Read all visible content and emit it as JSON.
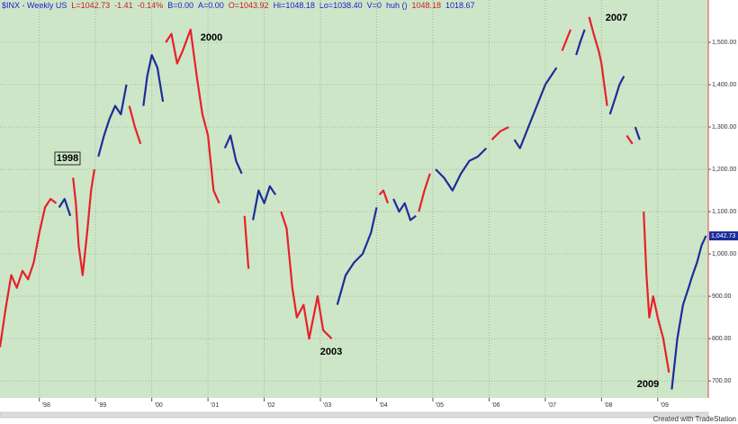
{
  "chart_data": {
    "type": "line",
    "header": [
      {
        "text": "$INX - Weekly  US",
        "color": "#1a1ad0"
      },
      {
        "text": "L=1042.73",
        "color": "#d01a1a"
      },
      {
        "text": "-1.41",
        "color": "#d01a1a"
      },
      {
        "text": "-0.14%",
        "color": "#d01a1a"
      },
      {
        "text": "B=0.00",
        "color": "#1a1ad0"
      },
      {
        "text": "A=0.00",
        "color": "#1a1ad0"
      },
      {
        "text": "O=1043.92",
        "color": "#d01a1a"
      },
      {
        "text": "Hi=1048.18",
        "color": "#1a1ad0"
      },
      {
        "text": "Lo=1038.40",
        "color": "#1a1ad0"
      },
      {
        "text": "V=0",
        "color": "#1a1ad0"
      },
      {
        "text": "huh ()",
        "color": "#1a1ad0"
      },
      {
        "text": "1048.18",
        "color": "#d01a1a"
      },
      {
        "text": "1018.67",
        "color": "#1a1ad0"
      }
    ],
    "annotations": [
      "1998",
      "2000",
      "2003",
      "2007",
      "2009"
    ],
    "footer": "Created with TradeStation",
    "last_price": {
      "value": 1042.73,
      "label": "1,042.73"
    },
    "xlim": [
      1997.3,
      2009.9
    ],
    "xticks": [
      {
        "value": 1998,
        "label": "'98"
      },
      {
        "value": 1999,
        "label": "'99"
      },
      {
        "value": 2000,
        "label": "'00"
      },
      {
        "value": 2001,
        "label": "'01"
      },
      {
        "value": 2002,
        "label": "'02"
      },
      {
        "value": 2003,
        "label": "'03"
      },
      {
        "value": 2004,
        "label": "'04"
      },
      {
        "value": 2005,
        "label": "'05"
      },
      {
        "value": 2006,
        "label": "'06"
      },
      {
        "value": 2007,
        "label": "'07"
      },
      {
        "value": 2008,
        "label": "'08"
      },
      {
        "value": 2009,
        "label": "'09"
      }
    ],
    "ylim": [
      660,
      1600
    ],
    "yticks": [
      {
        "value": 700,
        "label": "700.00"
      },
      {
        "value": 800,
        "label": "800.00"
      },
      {
        "value": 900,
        "label": "900.00"
      },
      {
        "value": 1000,
        "label": "1,000.00"
      },
      {
        "value": 1100,
        "label": "1,100.00"
      },
      {
        "value": 1200,
        "label": "1,200.00"
      },
      {
        "value": 1300,
        "label": "1,300.00"
      },
      {
        "value": 1400,
        "label": "1,400.00"
      },
      {
        "value": 1500,
        "label": "1,500.00"
      }
    ],
    "grid": true,
    "series": [
      {
        "color": "#e8202a",
        "x": [
          1997.3,
          1997.4,
          1997.5,
          1997.6,
          1997.7,
          1997.8,
          1997.9,
          1998.0,
          1998.1,
          1998.2,
          1998.3
        ],
        "values": [
          780,
          870,
          950,
          920,
          960,
          940,
          980,
          1050,
          1110,
          1130,
          1120
        ]
      },
      {
        "color": "#1c2d9a",
        "x": [
          1998.35,
          1998.45,
          1998.55
        ],
        "values": [
          1110,
          1130,
          1090
        ]
      },
      {
        "color": "#e8202a",
        "x": [
          1998.6,
          1998.65,
          1998.7,
          1998.77,
          1998.85,
          1998.92,
          1998.98
        ],
        "values": [
          1180,
          1120,
          1020,
          950,
          1050,
          1150,
          1200
        ]
      },
      {
        "color": "#1c2d9a",
        "x": [
          1999.05,
          1999.15,
          1999.25,
          1999.35,
          1999.45,
          1999.55
        ],
        "values": [
          1230,
          1280,
          1320,
          1350,
          1330,
          1400
        ]
      },
      {
        "color": "#e8202a",
        "x": [
          1999.6,
          1999.7,
          1999.8
        ],
        "values": [
          1350,
          1300,
          1260
        ]
      },
      {
        "color": "#1c2d9a",
        "x": [
          1999.85,
          1999.92,
          2000.0,
          2000.1,
          2000.2
        ],
        "values": [
          1350,
          1420,
          1470,
          1440,
          1360
        ]
      },
      {
        "color": "#e8202a",
        "x": [
          2000.25,
          2000.35,
          2000.45,
          2000.55,
          2000.69,
          2000.8,
          2000.9,
          2001.0,
          2001.1,
          2001.2
        ],
        "values": [
          1500,
          1520,
          1450,
          1480,
          1530,
          1420,
          1330,
          1280,
          1150,
          1120
        ]
      },
      {
        "color": "#1c2d9a",
        "x": [
          2001.3,
          2001.4,
          2001.5,
          2001.6
        ],
        "values": [
          1250,
          1280,
          1220,
          1190
        ]
      },
      {
        "color": "#e8202a",
        "x": [
          2001.65,
          2001.72
        ],
        "values": [
          1090,
          965
        ]
      },
      {
        "color": "#1c2d9a",
        "x": [
          2001.8,
          2001.9,
          2002.0,
          2002.1,
          2002.2
        ],
        "values": [
          1080,
          1150,
          1120,
          1160,
          1140
        ]
      },
      {
        "color": "#e8202a",
        "x": [
          2002.3,
          2002.4,
          2002.5,
          2002.58,
          2002.7,
          2002.8,
          2002.95,
          2003.05,
          2003.2
        ],
        "values": [
          1100,
          1060,
          920,
          850,
          880,
          800,
          900,
          820,
          800
        ]
      },
      {
        "color": "#1c2d9a",
        "x": [
          2003.3,
          2003.45,
          2003.6,
          2003.75,
          2003.9,
          2004.0
        ],
        "values": [
          880,
          950,
          980,
          1000,
          1050,
          1110
        ]
      },
      {
        "color": "#e8202a",
        "x": [
          2004.05,
          2004.12,
          2004.2
        ],
        "values": [
          1140,
          1150,
          1120
        ]
      },
      {
        "color": "#1c2d9a",
        "x": [
          2004.3,
          2004.4,
          2004.5,
          2004.6,
          2004.7
        ],
        "values": [
          1130,
          1100,
          1120,
          1080,
          1090
        ]
      },
      {
        "color": "#e8202a",
        "x": [
          2004.75,
          2004.85,
          2004.95
        ],
        "values": [
          1100,
          1150,
          1190
        ]
      },
      {
        "color": "#1c2d9a",
        "x": [
          2005.05,
          2005.2,
          2005.35,
          2005.5,
          2005.65,
          2005.8,
          2005.95
        ],
        "values": [
          1200,
          1180,
          1150,
          1190,
          1220,
          1230,
          1250
        ]
      },
      {
        "color": "#e8202a",
        "x": [
          2006.05,
          2006.2,
          2006.35
        ],
        "values": [
          1270,
          1290,
          1300
        ]
      },
      {
        "color": "#1c2d9a",
        "x": [
          2006.45,
          2006.55,
          2006.7,
          2006.85,
          2007.0,
          2007.1,
          2007.2
        ],
        "values": [
          1270,
          1250,
          1300,
          1350,
          1400,
          1420,
          1440
        ]
      },
      {
        "color": "#e8202a",
        "x": [
          2007.3,
          2007.45
        ],
        "values": [
          1480,
          1530
        ]
      },
      {
        "color": "#1c2d9a",
        "x": [
          2007.55,
          2007.62,
          2007.7
        ],
        "values": [
          1470,
          1500,
          1530
        ]
      },
      {
        "color": "#e8202a",
        "x": [
          2007.78,
          2007.86,
          2007.95,
          2008.0,
          2008.05,
          2008.1
        ],
        "values": [
          1560,
          1520,
          1480,
          1450,
          1400,
          1350
        ]
      },
      {
        "color": "#1c2d9a",
        "x": [
          2008.15,
          2008.25,
          2008.32,
          2008.4
        ],
        "values": [
          1330,
          1370,
          1400,
          1420
        ]
      },
      {
        "color": "#e8202a",
        "x": [
          2008.45,
          2008.55
        ],
        "values": [
          1280,
          1260
        ]
      },
      {
        "color": "#1c2d9a",
        "x": [
          2008.6,
          2008.68
        ],
        "values": [
          1300,
          1270
        ]
      },
      {
        "color": "#e8202a",
        "x": [
          2008.75,
          2008.8,
          2008.85,
          2008.92,
          2009.0,
          2009.1,
          2009.2
        ],
        "values": [
          1100,
          950,
          850,
          900,
          850,
          800,
          720
        ]
      },
      {
        "color": "#1c2d9a",
        "x": [
          2009.25,
          2009.35,
          2009.45,
          2009.55,
          2009.62,
          2009.7,
          2009.78,
          2009.86
        ],
        "values": [
          680,
          800,
          880,
          920,
          950,
          980,
          1020,
          1043
        ]
      }
    ]
  }
}
